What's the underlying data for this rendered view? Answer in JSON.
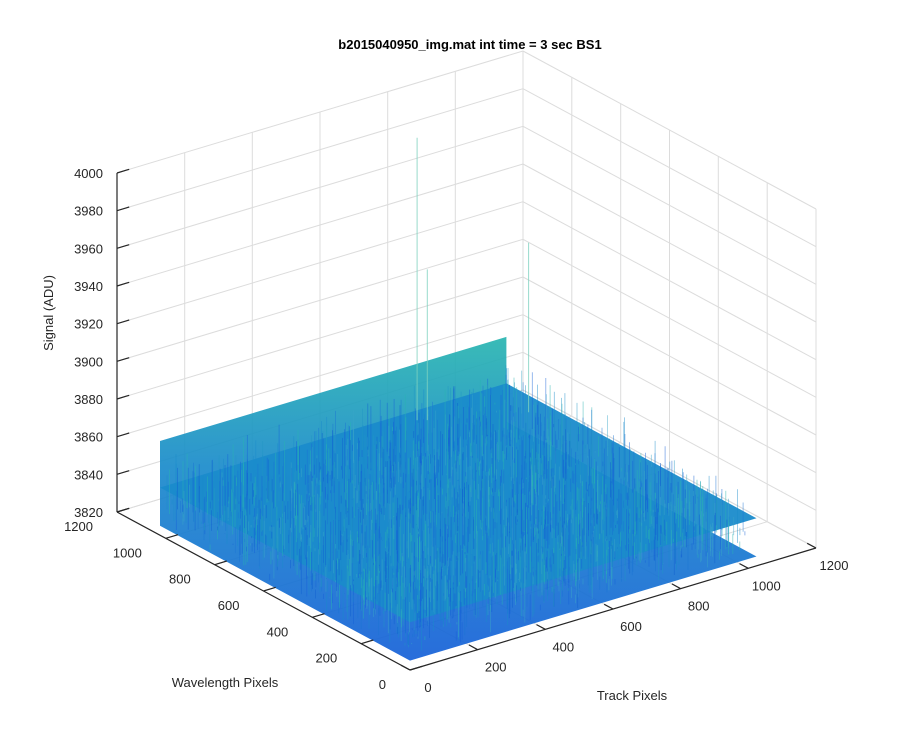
{
  "chart_data": {
    "type": "surface",
    "title": "b2015040950_img.mat int time = 3 sec   BS1",
    "xlabel": "Track Pixels",
    "ylabel": "Wavelength Pixels",
    "zlabel": "Signal (ADU)",
    "xlim": [
      0,
      1200
    ],
    "ylim": [
      0,
      1200
    ],
    "zlim": [
      3820,
      4000
    ],
    "x_ticks": [
      "0",
      "200",
      "400",
      "600",
      "800",
      "1000",
      "1200"
    ],
    "y_ticks": [
      "0",
      "200",
      "400",
      "600",
      "800",
      "1000",
      "1200"
    ],
    "z_ticks": [
      "3820",
      "3840",
      "3860",
      "3880",
      "3900",
      "3920",
      "3940",
      "3960",
      "3980",
      "4000"
    ],
    "surface": {
      "x_range": [
        0,
        1024
      ],
      "y_range": [
        0,
        1024
      ],
      "mean_signal": 3840,
      "signal_range": [
        3825,
        3870
      ],
      "spikes": [
        {
          "x": 760,
          "y": 1024,
          "z": 3990
        },
        {
          "x": 1000,
          "y": 900,
          "z": 3930
        },
        {
          "x": 780,
          "y": 1010,
          "z": 3920
        }
      ]
    },
    "colormap": "parula",
    "grid": true,
    "colors": {
      "surface_low": "#1560d8",
      "surface_mid": "#1a8bcb",
      "surface_high": "#28b5b0",
      "grid": "#dcdcdc",
      "axis": "#262626"
    }
  }
}
